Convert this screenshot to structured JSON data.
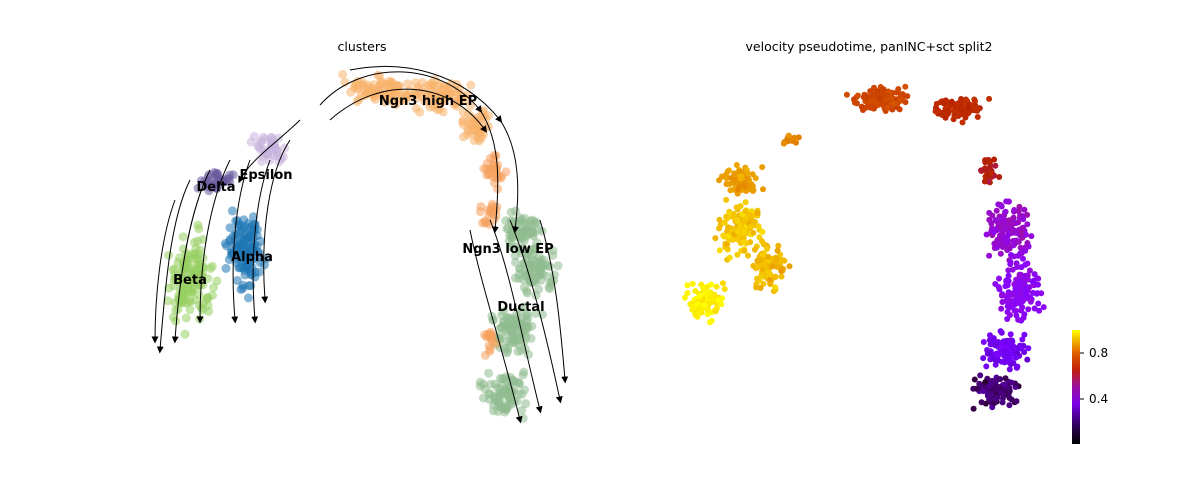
{
  "figure": {
    "left_title": "clusters",
    "right_title": "velocity pseudotime, panINC+sct split2"
  },
  "chart_data": [
    {
      "type": "scatter",
      "title": "clusters",
      "description": "embedding scatter colored by cluster with velocity streamlines",
      "clusters": [
        {
          "name": "Ngn3 high EP",
          "color": "#f7b36b"
        },
        {
          "name": "Ngn3 low EP",
          "color": "#f5a15c"
        },
        {
          "name": "Ductal",
          "color": "#8fbc8f"
        },
        {
          "name": "Alpha",
          "color": "#1f77b4"
        },
        {
          "name": "Beta",
          "color": "#98d063"
        },
        {
          "name": "Delta",
          "color": "#6a5a9e"
        },
        {
          "name": "Epsilon",
          "color": "#c7b3dd"
        }
      ],
      "grid": false,
      "legend": "on data"
    },
    {
      "type": "scatter",
      "title": "velocity pseudotime, panINC+sct split2",
      "colormap": "gnuplot",
      "colorbar": {
        "ticks": [
          {
            "value": 0.4,
            "label": "0.4"
          },
          {
            "value": 0.8,
            "label": "0.8"
          }
        ],
        "range": [
          0.0,
          1.0
        ]
      },
      "grid": false
    }
  ]
}
